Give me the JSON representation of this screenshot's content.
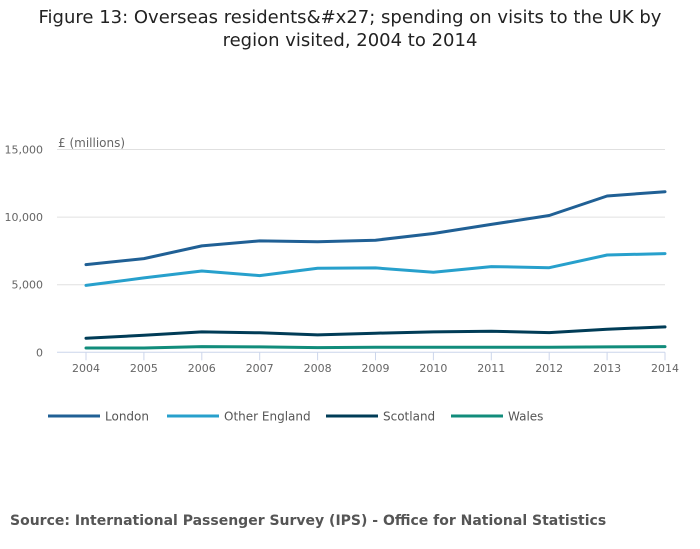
{
  "chart_data": {
    "type": "line",
    "title": "Figure 13: Overseas residents&#x27; spending on visits to the UK by region visited, 2004 to 2014",
    "ylabel": "£ (millions)",
    "xlabel": "",
    "ylim": [
      0,
      15000
    ],
    "yticks": [
      0,
      5000,
      10000,
      15000
    ],
    "ytick_labels": [
      "0",
      "5,000",
      "10,000",
      "15,000"
    ],
    "x": [
      "2004",
      "2005",
      "2006",
      "2007",
      "2008",
      "2009",
      "2010",
      "2011",
      "2012",
      "2013",
      "2014"
    ],
    "grid": "horizontal",
    "legend_placement": "bottom",
    "series": [
      {
        "name": "London",
        "color": "#206095",
        "values": [
          6490,
          6930,
          7870,
          8240,
          8170,
          8290,
          8790,
          9460,
          10120,
          11560,
          11880
        ]
      },
      {
        "name": "Other England",
        "color": "#27a0cc",
        "values": [
          4950,
          5500,
          6010,
          5670,
          6210,
          6240,
          5920,
          6340,
          6260,
          7200,
          7300
        ]
      },
      {
        "name": "Scotland",
        "color": "#003c57",
        "values": [
          1040,
          1260,
          1510,
          1440,
          1290,
          1410,
          1510,
          1560,
          1460,
          1710,
          1880
        ]
      },
      {
        "name": "Wales",
        "color": "#118c7b",
        "values": [
          320,
          320,
          420,
          400,
          350,
          370,
          370,
          370,
          370,
          400,
          420
        ]
      }
    ]
  },
  "source": "Source: International Passenger Survey (IPS) - Office for National Statistics"
}
